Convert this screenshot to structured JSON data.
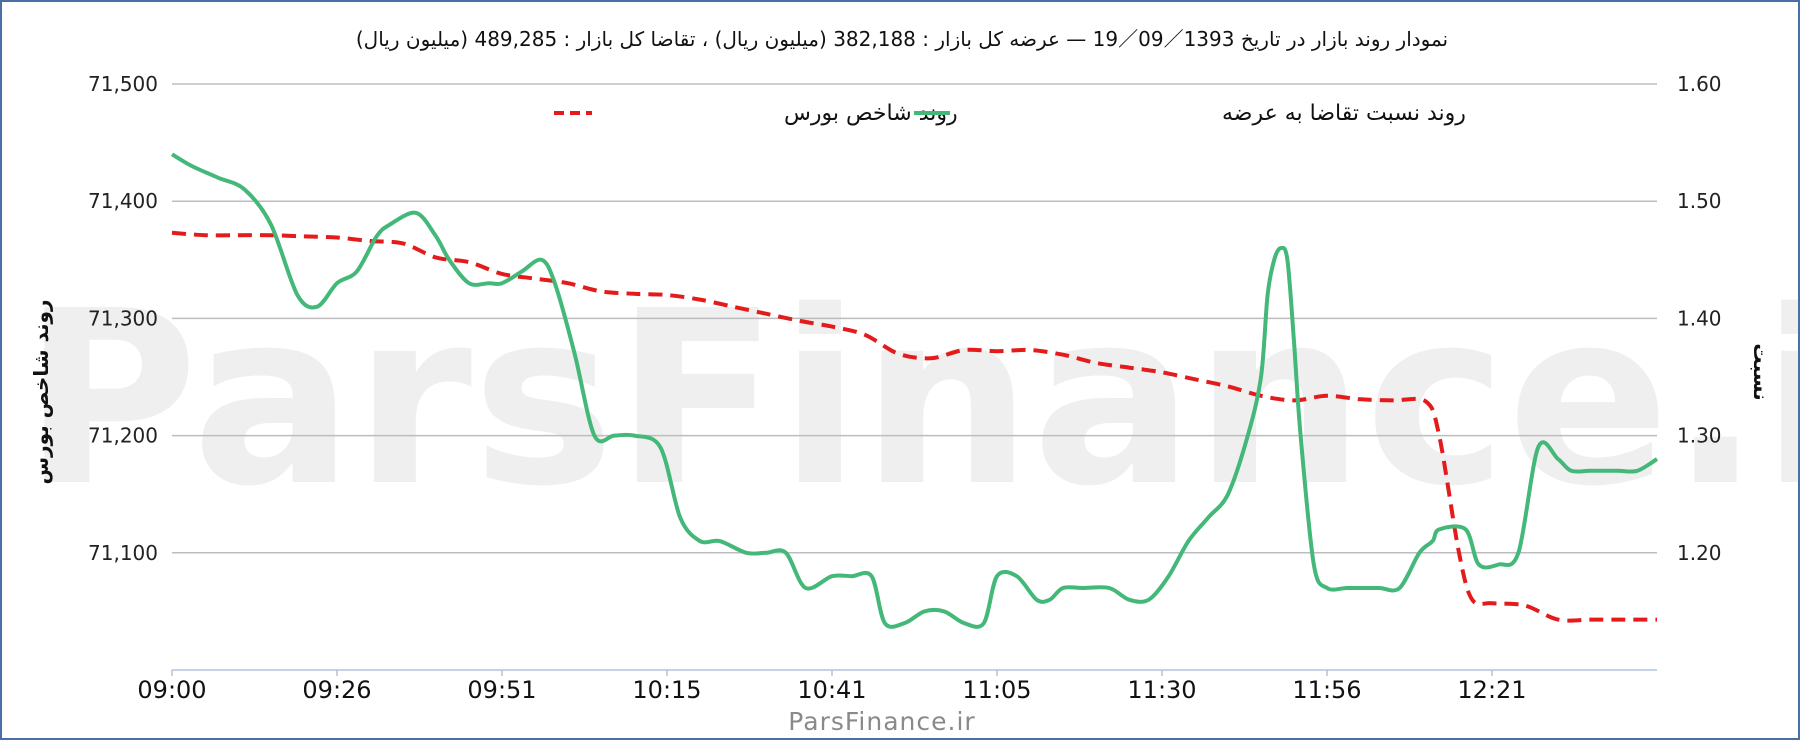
{
  "chart_data": {
    "type": "line",
    "title": "نمودار روند بازار در تاریخ 19／09／1393 — عرضه کل بازار : 382,188 (میلیون ریال) ، تقاضا کل بازار : 489,285 (میلیون ریال)",
    "y_left_label": "روند شاخص بورس",
    "y_right_label": "نسبت",
    "y_left_ticks": [
      "71,500",
      "71,400",
      "71,300",
      "71,200",
      "71,100"
    ],
    "y_right_ticks": [
      "1.60",
      "1.50",
      "1.40",
      "1.30",
      "1.20"
    ],
    "y_left_range": [
      71000,
      71500
    ],
    "y_right_range": [
      1.1,
      1.6
    ],
    "x_ticks": [
      "09:00",
      "09:26",
      "09:51",
      "10:15",
      "10:41",
      "11:05",
      "11:30",
      "11:56",
      "12:21"
    ],
    "x_range": [
      0,
      225
    ],
    "grid": true,
    "legend_position": "top",
    "watermark": "ParsFinance.ir",
    "source": "ParsFinance.ir",
    "series": [
      {
        "name": "روند شاخص بورس",
        "axis": "left",
        "color": "#e31b1b",
        "style": "dashed",
        "x": [
          0,
          5,
          10,
          15,
          20,
          25,
          30,
          35,
          40,
          45,
          50,
          55,
          60,
          65,
          70,
          75,
          80,
          85,
          90,
          95,
          100,
          105,
          110,
          115,
          120,
          125,
          130,
          135,
          140,
          145,
          150,
          155,
          160,
          165,
          170,
          175,
          180,
          185,
          190,
          192,
          195,
          197,
          200,
          205,
          210,
          215,
          220,
          225
        ],
        "y": [
          71373,
          71371,
          71371,
          71371,
          71370,
          71369,
          71366,
          71364,
          71352,
          71348,
          71338,
          71334,
          71330,
          71323,
          71321,
          71320,
          71316,
          71310,
          71304,
          71298,
          71293,
          71286,
          71270,
          71266,
          71273,
          71272,
          71273,
          71269,
          71262,
          71258,
          71254,
          71248,
          71242,
          71234,
          71230,
          71234,
          71231,
          71230,
          71229,
          71200,
          71100,
          71060,
          71057,
          71055,
          71043,
          71043,
          71043,
          71043
        ]
      },
      {
        "name": "روند نسبت تقاضا به عرضه",
        "axis": "right",
        "color": "#43b878",
        "style": "solid",
        "x": [
          0,
          3,
          7,
          11,
          15,
          19,
          22,
          25,
          28,
          31,
          33,
          37,
          40,
          42,
          45,
          48,
          50,
          53,
          56,
          58,
          61,
          64,
          67,
          70,
          74,
          77,
          80,
          83,
          87,
          90,
          93,
          96,
          100,
          103,
          106,
          108,
          111,
          114,
          117,
          120,
          123,
          125,
          128,
          131,
          133,
          135,
          138,
          142,
          145,
          148,
          151,
          154,
          157,
          160,
          163,
          165,
          166,
          167,
          168,
          169,
          170,
          171,
          173,
          175,
          178,
          181,
          183,
          186,
          189,
          191,
          192,
          196,
          198,
          201,
          204,
          207,
          210,
          212,
          215,
          219,
          222,
          225
        ],
        "y": [
          1.54,
          1.53,
          1.52,
          1.51,
          1.48,
          1.42,
          1.41,
          1.43,
          1.44,
          1.47,
          1.48,
          1.49,
          1.47,
          1.45,
          1.43,
          1.43,
          1.43,
          1.44,
          1.45,
          1.43,
          1.37,
          1.3,
          1.3,
          1.3,
          1.29,
          1.23,
          1.21,
          1.21,
          1.2,
          1.2,
          1.2,
          1.17,
          1.18,
          1.18,
          1.18,
          1.14,
          1.14,
          1.15,
          1.15,
          1.14,
          1.14,
          1.18,
          1.18,
          1.16,
          1.16,
          1.17,
          1.17,
          1.17,
          1.16,
          1.16,
          1.18,
          1.21,
          1.23,
          1.25,
          1.3,
          1.35,
          1.42,
          1.45,
          1.46,
          1.45,
          1.38,
          1.3,
          1.19,
          1.17,
          1.17,
          1.17,
          1.17,
          1.17,
          1.2,
          1.21,
          1.22,
          1.22,
          1.19,
          1.19,
          1.2,
          1.29,
          1.28,
          1.27,
          1.27,
          1.27,
          1.27,
          1.28
        ]
      }
    ]
  }
}
